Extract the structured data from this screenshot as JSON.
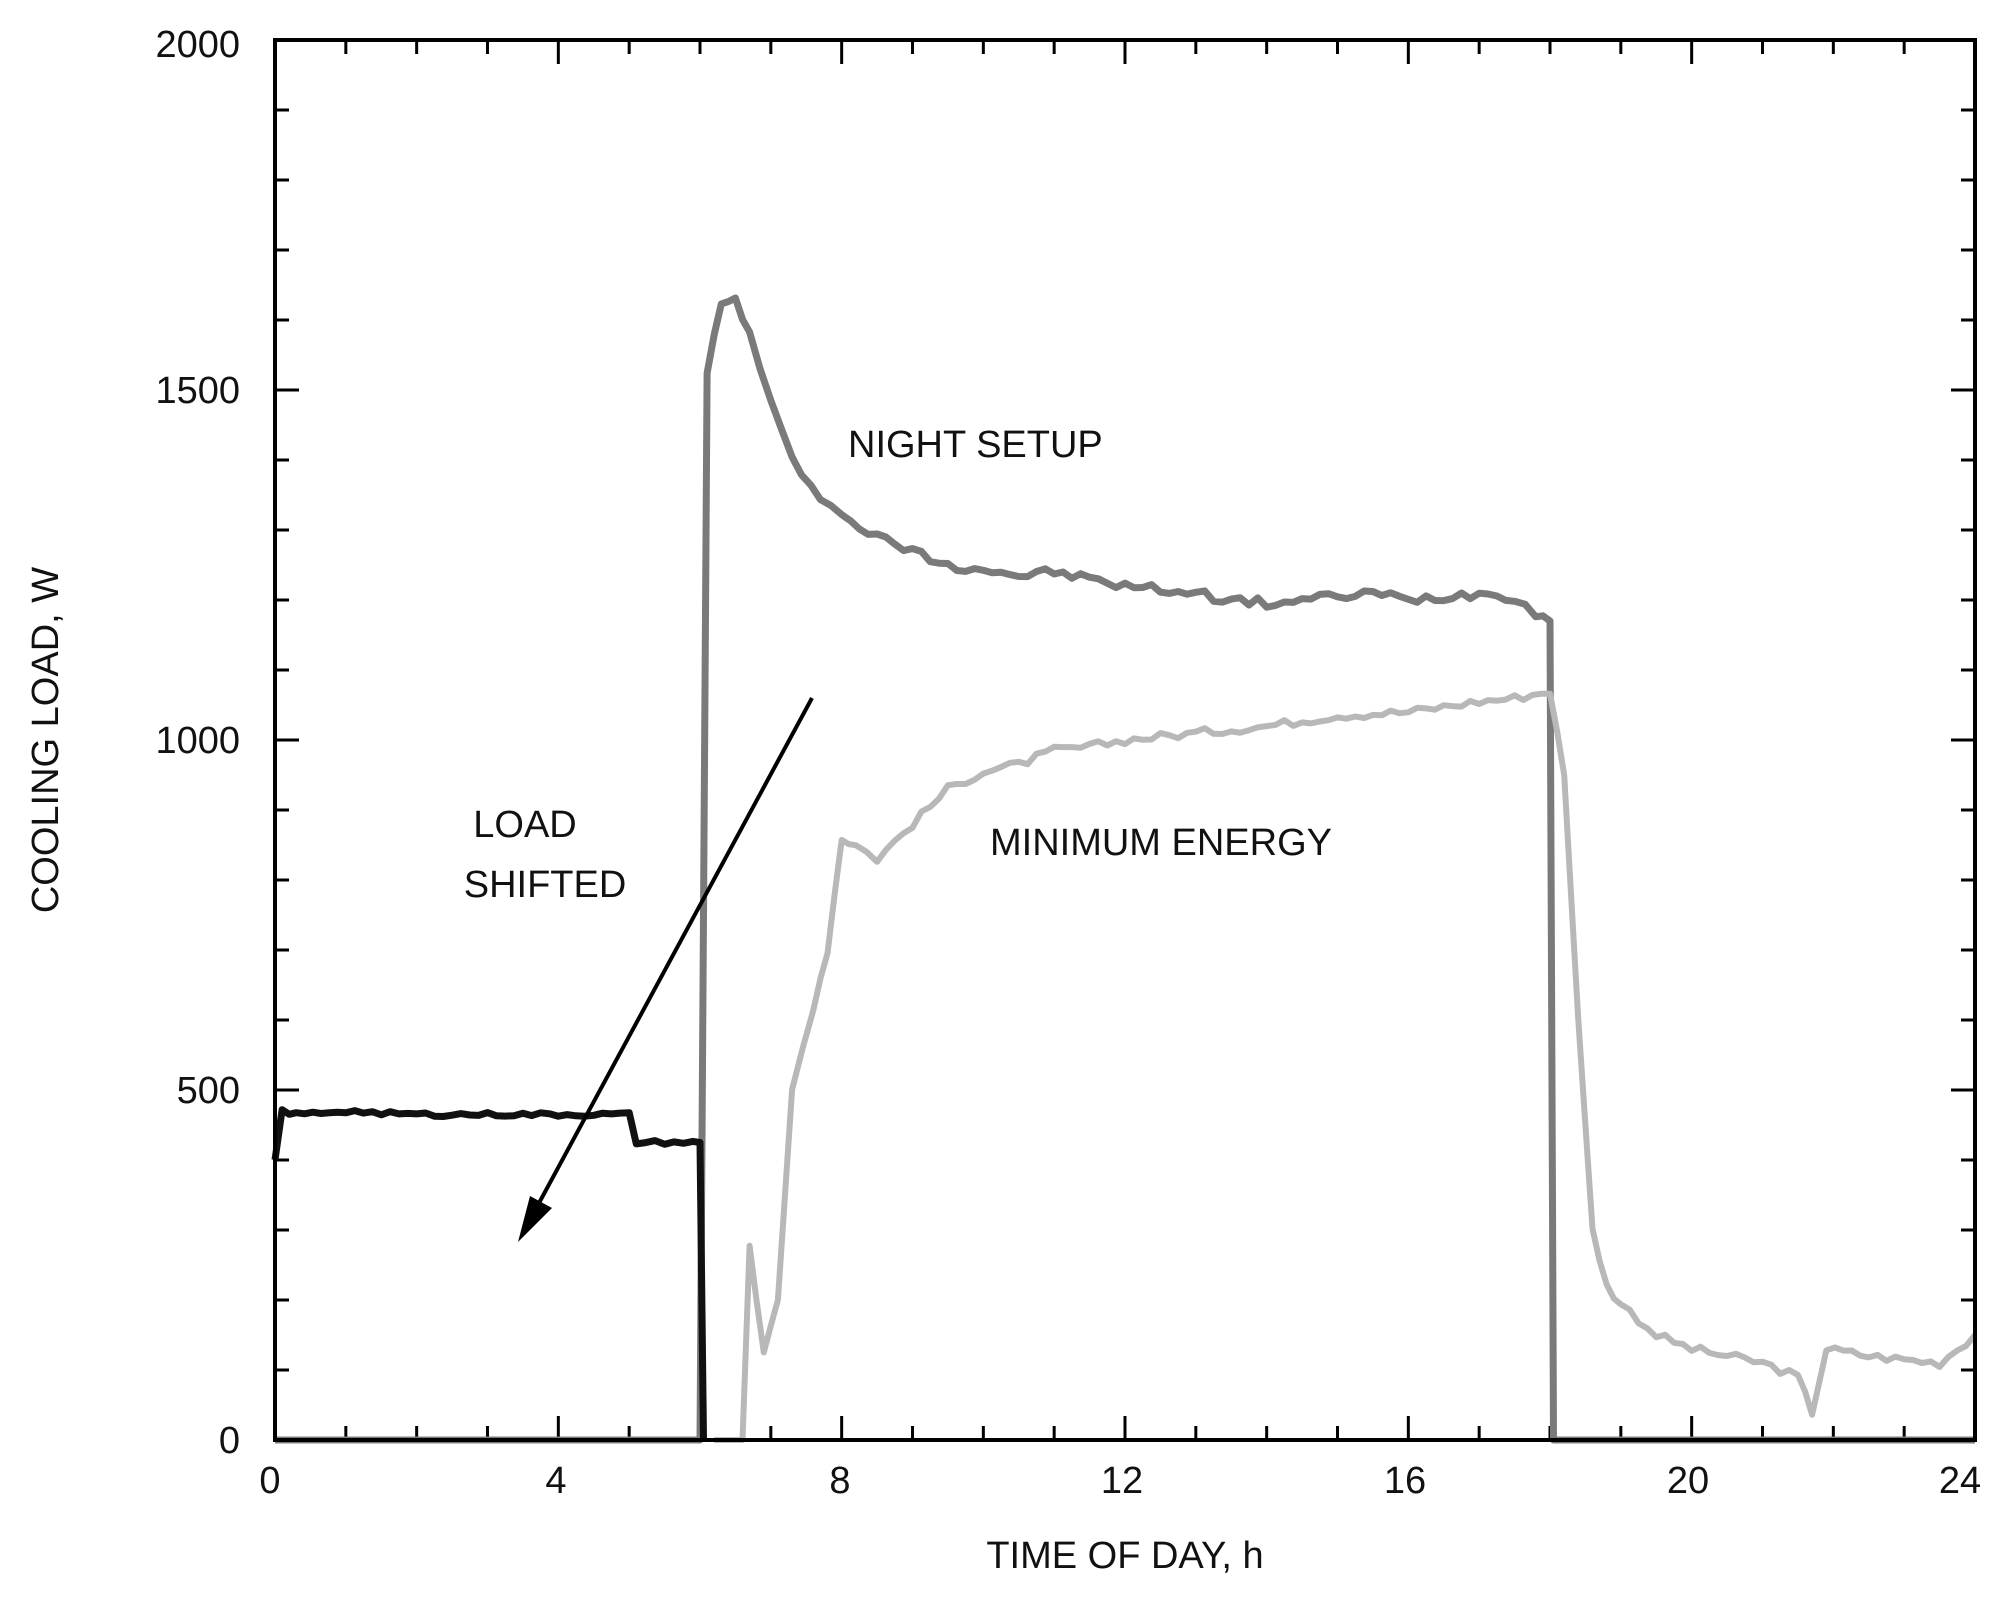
{
  "chart_data": {
    "type": "line",
    "title": "",
    "xlabel": "TIME OF DAY, h",
    "ylabel": "COOLING LOAD, W",
    "xlim": [
      0,
      24
    ],
    "ylim": [
      0,
      2000
    ],
    "xticks": [
      "0",
      "4",
      "8",
      "12",
      "16",
      "20",
      "24"
    ],
    "yticks": [
      "0",
      "500",
      "1000",
      "1500",
      "2000"
    ],
    "grid": false,
    "legend": "none",
    "series": [
      {
        "name": "NIGHT SETUP",
        "color": "#7a7a7a",
        "points": [
          [
            0,
            0
          ],
          [
            6.0,
            0
          ],
          [
            6.1,
            1530
          ],
          [
            6.3,
            1620
          ],
          [
            6.5,
            1630
          ],
          [
            6.7,
            1580
          ],
          [
            7.0,
            1480
          ],
          [
            7.3,
            1400
          ],
          [
            7.7,
            1350
          ],
          [
            8.0,
            1320
          ],
          [
            8.5,
            1290
          ],
          [
            9.0,
            1270
          ],
          [
            9.5,
            1250
          ],
          [
            10.0,
            1245
          ],
          [
            10.5,
            1235
          ],
          [
            11.0,
            1240
          ],
          [
            11.5,
            1230
          ],
          [
            12.0,
            1220
          ],
          [
            12.5,
            1215
          ],
          [
            13.0,
            1210
          ],
          [
            13.5,
            1200
          ],
          [
            14.0,
            1195
          ],
          [
            14.5,
            1200
          ],
          [
            15.0,
            1205
          ],
          [
            15.5,
            1210
          ],
          [
            16.0,
            1200
          ],
          [
            16.5,
            1205
          ],
          [
            17.0,
            1210
          ],
          [
            17.5,
            1205
          ],
          [
            17.8,
            1180
          ],
          [
            18.0,
            1170
          ],
          [
            18.05,
            0
          ],
          [
            24,
            0
          ]
        ]
      },
      {
        "name": "MINIMUM ENERGY",
        "color": "#b8b8b8",
        "points": [
          [
            6.2,
            0
          ],
          [
            6.6,
            0
          ],
          [
            6.7,
            280
          ],
          [
            6.9,
            120
          ],
          [
            7.1,
            200
          ],
          [
            7.3,
            500
          ],
          [
            7.6,
            620
          ],
          [
            7.8,
            700
          ],
          [
            8.0,
            860
          ],
          [
            8.2,
            850
          ],
          [
            8.5,
            830
          ],
          [
            9.0,
            880
          ],
          [
            9.5,
            930
          ],
          [
            10.0,
            955
          ],
          [
            10.5,
            965
          ],
          [
            11.0,
            985
          ],
          [
            11.5,
            990
          ],
          [
            12.0,
            1000
          ],
          [
            13.0,
            1010
          ],
          [
            14.0,
            1020
          ],
          [
            15.0,
            1035
          ],
          [
            16.0,
            1040
          ],
          [
            17.0,
            1055
          ],
          [
            17.5,
            1060
          ],
          [
            18.0,
            1070
          ],
          [
            18.2,
            950
          ],
          [
            18.4,
            600
          ],
          [
            18.6,
            300
          ],
          [
            18.8,
            220
          ],
          [
            19.0,
            195
          ],
          [
            19.5,
            150
          ],
          [
            20.0,
            130
          ],
          [
            20.5,
            120
          ],
          [
            21.0,
            110
          ],
          [
            21.5,
            90
          ],
          [
            21.7,
            40
          ],
          [
            21.9,
            130
          ],
          [
            22.5,
            120
          ],
          [
            23.0,
            115
          ],
          [
            23.5,
            110
          ],
          [
            24.0,
            150
          ]
        ]
      },
      {
        "name": "LOAD SHIFTED",
        "color": "#111111",
        "points": [
          [
            0,
            400
          ],
          [
            0.1,
            470
          ],
          [
            0.3,
            465
          ],
          [
            1.0,
            470
          ],
          [
            2.0,
            465
          ],
          [
            3.0,
            465
          ],
          [
            4.0,
            465
          ],
          [
            5.0,
            465
          ],
          [
            5.1,
            425
          ],
          [
            5.5,
            425
          ],
          [
            5.9,
            425
          ],
          [
            6.0,
            425
          ],
          [
            6.05,
            0
          ]
        ]
      }
    ],
    "annotations": [
      "NIGHT SETUP",
      "MINIMUM ENERGY",
      "LOAD",
      "SHIFTED"
    ]
  }
}
